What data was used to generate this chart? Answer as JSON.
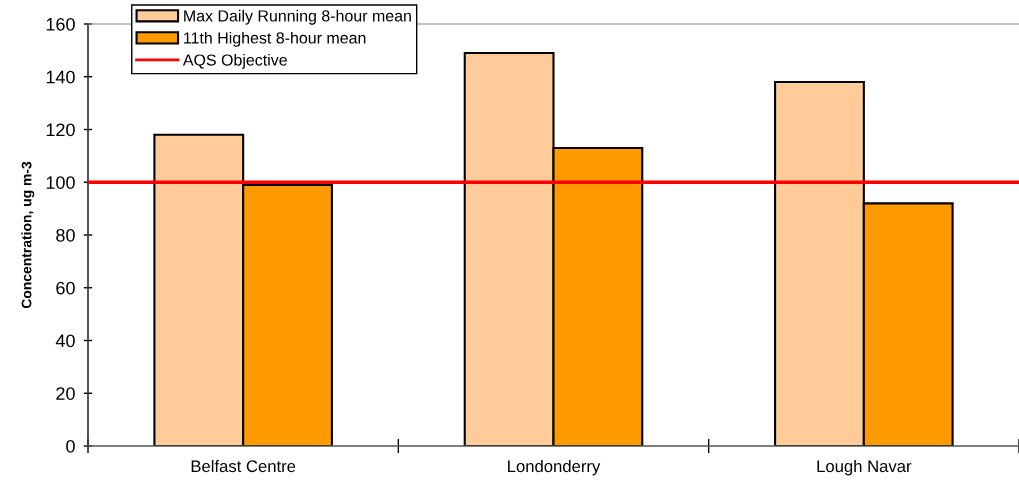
{
  "chart_data": {
    "type": "bar",
    "ylabel": "Concentration, ug m-3",
    "categories": [
      "Belfast Centre",
      "Londonderry",
      "Lough Navar"
    ],
    "series": [
      {
        "name": "Max Daily Running 8-hour mean",
        "color": "#ffcc99",
        "values": [
          118,
          149,
          138
        ]
      },
      {
        "name": "11th Highest 8-hour mean",
        "color": "#ff9900",
        "values": [
          99,
          113,
          92
        ]
      }
    ],
    "ylim": [
      0,
      160
    ],
    "yticks": [
      0,
      20,
      40,
      60,
      80,
      100,
      120,
      140,
      160
    ],
    "ref_lines": [
      {
        "axis": "y",
        "value": 100,
        "label": "AQS Objective",
        "color": "#ff0000"
      }
    ],
    "legend": "top left",
    "grid": false
  }
}
